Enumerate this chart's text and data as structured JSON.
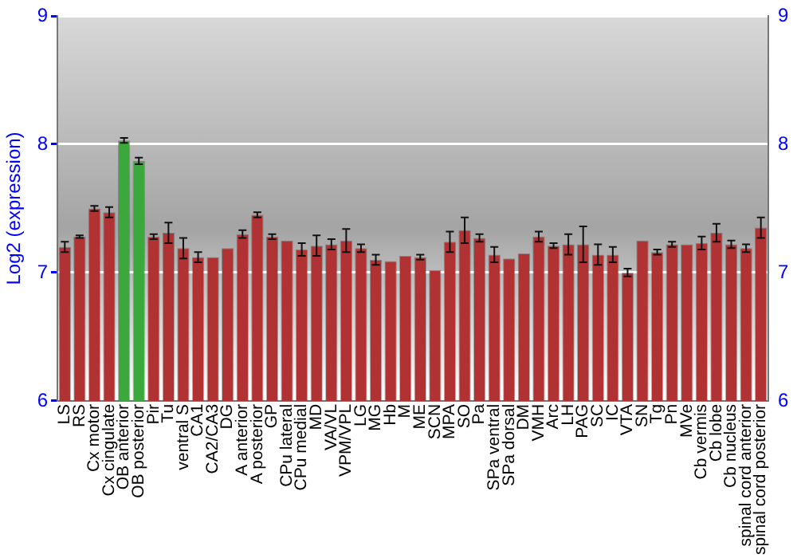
{
  "chart_data": {
    "type": "bar",
    "ylabel": "Log2 (expression)",
    "categories": [
      "LS",
      "RS",
      "Cx motor",
      "Cx cingulate",
      "OB anterior",
      "OB posterior",
      "Pir",
      "Tu",
      "ventral S",
      "CA1",
      "CA2/CA3",
      "DG",
      "A anterior",
      "A posterior",
      "GP",
      "CPu lateral",
      "CPu medial",
      "MD",
      "VA/VL",
      "VPM/VPL",
      "LG",
      "MG",
      "Hb",
      "M",
      "ME",
      "SCN",
      "MPA",
      "SO",
      "Pa",
      "SPa ventral",
      "SPa dorsal",
      "DM",
      "VMH",
      "Arc",
      "LH",
      "PAG",
      "SC",
      "IC",
      "VTA",
      "SN",
      "Tg",
      "Pn",
      "MVe",
      "Cb vermis",
      "Cb lobe",
      "Cb nucleus",
      "spinal cord anterior",
      "spinal cord posterior"
    ],
    "values": [
      7.2,
      7.28,
      7.5,
      7.47,
      8.03,
      7.87,
      7.28,
      7.31,
      7.19,
      7.12,
      7.12,
      7.19,
      7.3,
      7.45,
      7.28,
      7.25,
      7.18,
      7.21,
      7.22,
      7.25,
      7.19,
      7.1,
      7.09,
      7.13,
      7.12,
      7.02,
      7.24,
      7.33,
      7.27,
      7.14,
      7.11,
      7.15,
      7.28,
      7.21,
      7.22,
      7.22,
      7.14,
      7.14,
      7.0,
      7.25,
      7.16,
      7.22,
      7.22,
      7.23,
      7.31,
      7.22,
      7.19,
      7.35
    ],
    "errors": [
      0.04,
      0.01,
      0.02,
      0.04,
      0.02,
      0.025,
      0.02,
      0.08,
      0.08,
      0.04,
      null,
      null,
      0.03,
      0.02,
      0.02,
      null,
      0.05,
      0.08,
      0.04,
      0.09,
      0.03,
      0.04,
      null,
      null,
      0.02,
      null,
      0.08,
      0.1,
      0.03,
      0.06,
      null,
      null,
      0.04,
      0.02,
      0.08,
      0.14,
      0.08,
      0.06,
      0.03,
      null,
      0.02,
      0.02,
      null,
      0.05,
      0.07,
      0.03,
      0.03,
      0.08
    ],
    "colors": [
      "#b03232",
      "#b03232",
      "#b03232",
      "#b03232",
      "#3aa83a",
      "#3aa83a",
      "#b03232",
      "#b03232",
      "#b03232",
      "#b03232",
      "#b03232",
      "#b03232",
      "#b03232",
      "#b03232",
      "#b03232",
      "#b03232",
      "#b03232",
      "#b03232",
      "#b03232",
      "#b03232",
      "#b03232",
      "#b03232",
      "#b03232",
      "#b03232",
      "#b03232",
      "#b03232",
      "#b03232",
      "#b03232",
      "#b03232",
      "#b03232",
      "#b03232",
      "#b03232",
      "#b03232",
      "#b03232",
      "#b03232",
      "#b03232",
      "#b03232",
      "#b03232",
      "#b03232",
      "#b03232",
      "#b03232",
      "#b03232",
      "#b03232",
      "#b03232",
      "#b03232",
      "#b03232",
      "#b03232",
      "#b03232"
    ],
    "ylim": [
      6,
      9
    ],
    "yticks": [
      6,
      7,
      8,
      9
    ],
    "y2lim": [
      6,
      9
    ],
    "y2ticks": [
      6,
      7,
      8,
      9
    ],
    "grid": "y",
    "legend": false
  }
}
